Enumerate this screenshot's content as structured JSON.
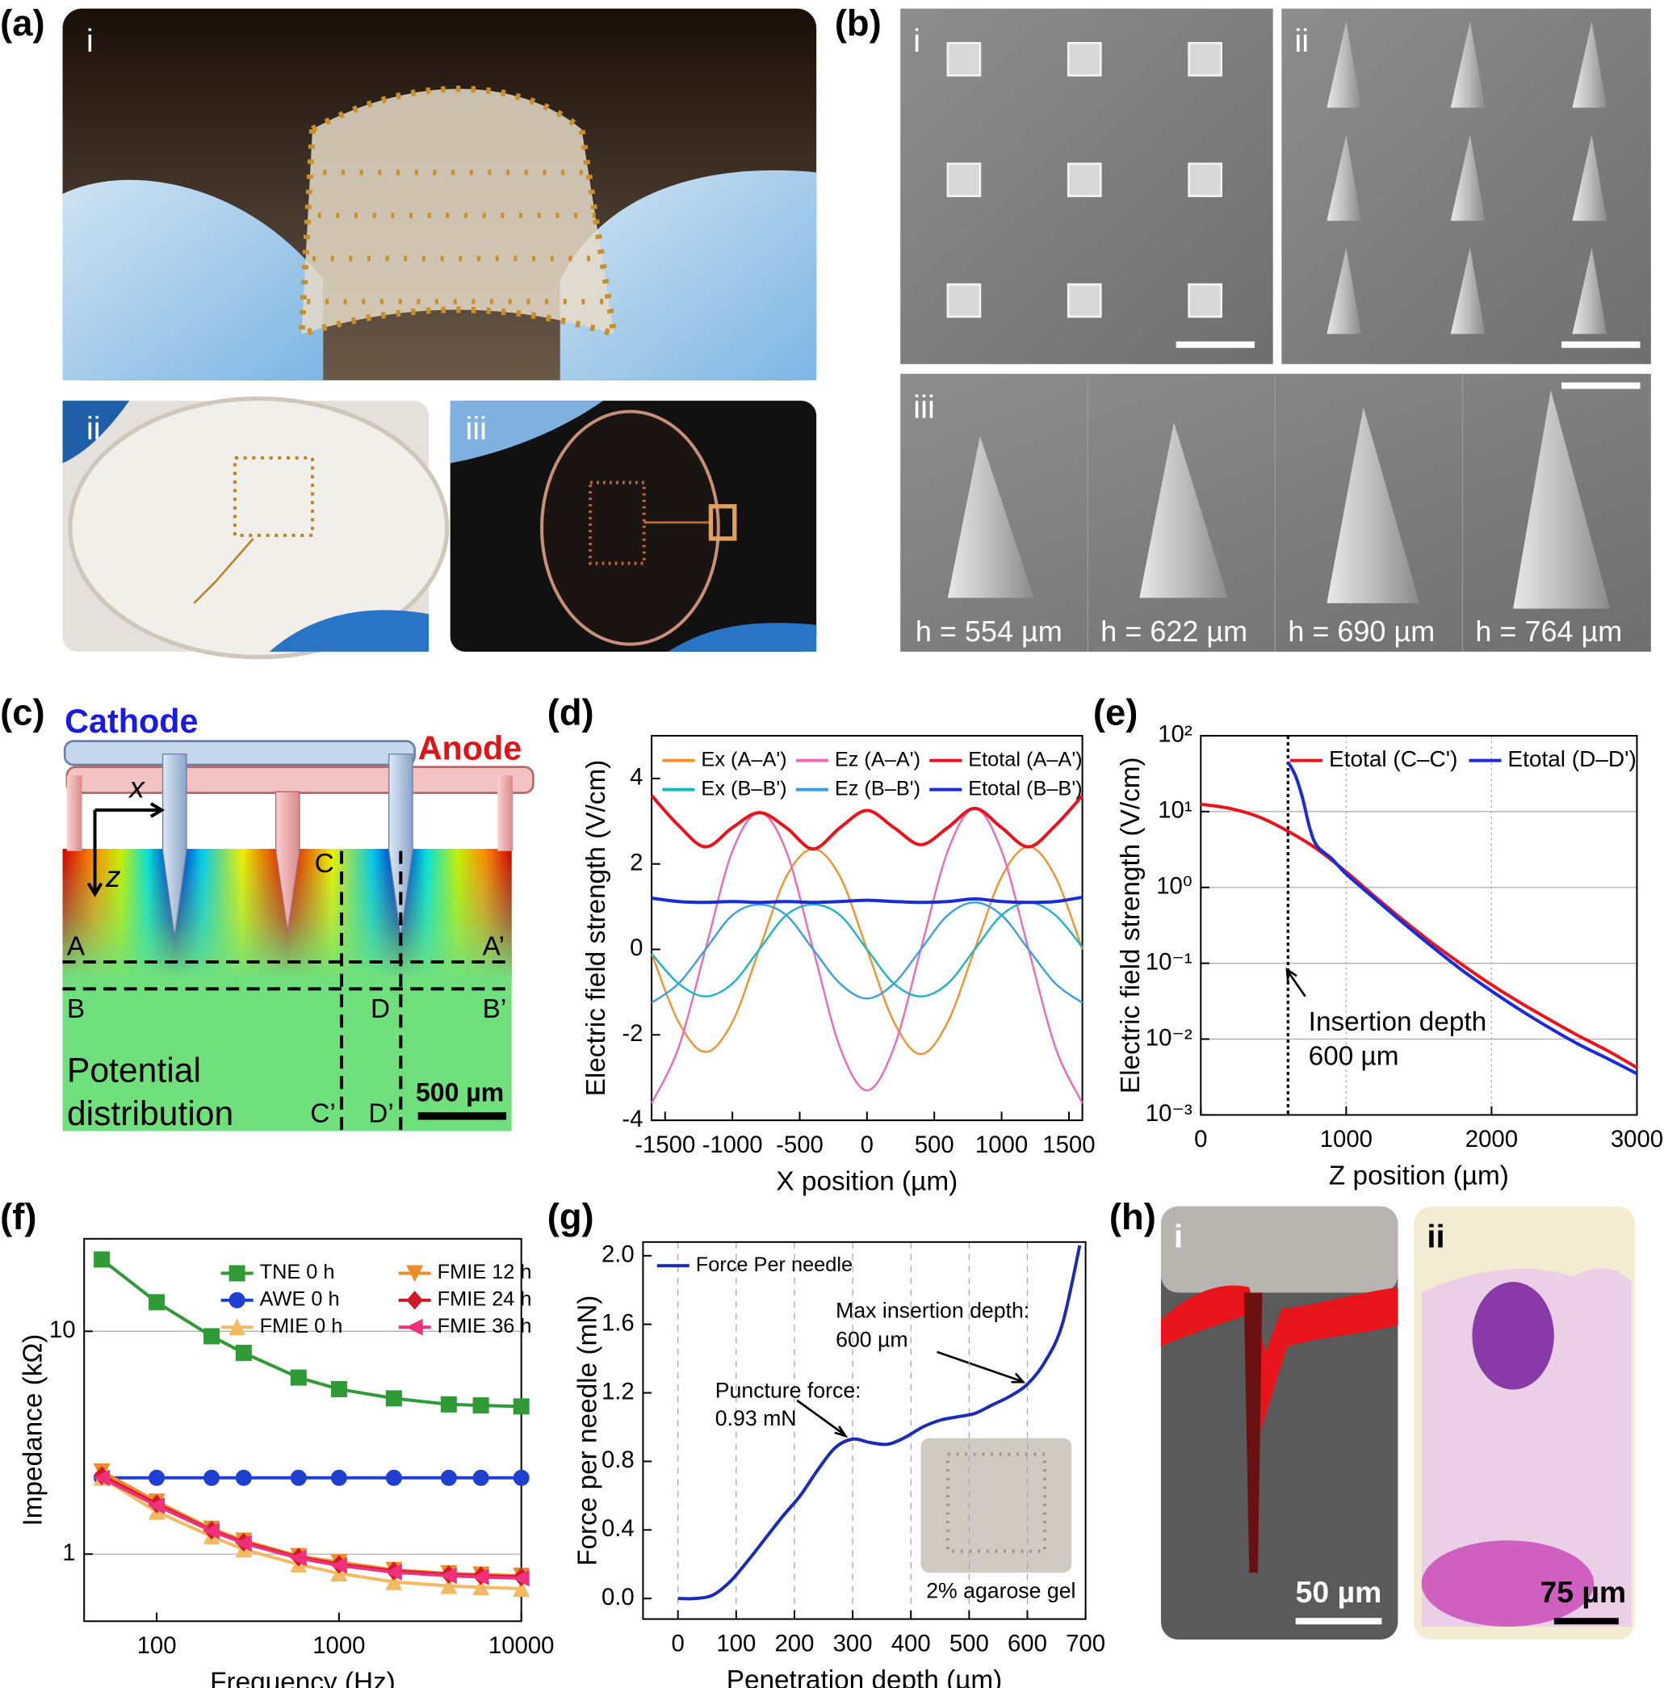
{
  "photos": {
    "a": {
      "label": "(a)",
      "sub": [
        "i",
        "ii",
        "iii"
      ]
    },
    "b": {
      "label": "(b)",
      "sub": [
        "i",
        "ii",
        "iii"
      ],
      "heights": [
        "h = 554 µm",
        "h = 622 µm",
        "h = 690 µm",
        "h = 764 µm"
      ]
    },
    "h": {
      "label": "(h)",
      "sub": [
        "i",
        "ii"
      ],
      "scale_bars": [
        "50 µm",
        "75 µm"
      ]
    }
  },
  "diagram": {
    "label": "(c)",
    "cathode": "Cathode",
    "anode": "Anode",
    "axes": [
      "x",
      "z"
    ],
    "points": [
      "A",
      "A’",
      "B",
      "B’",
      "C",
      "C’",
      "D",
      "D’"
    ],
    "caption": [
      "Potential",
      "distribution"
    ],
    "scale_bar": "500 µm"
  },
  "chart_data": [
    {
      "type": "line",
      "label": "(d)",
      "x_label": "X position (µm)",
      "y_label": "Electric field strength (V/cm)",
      "smooth": true,
      "legend": "upper center",
      "x": [
        -1600,
        -1400,
        -1200,
        -1000,
        -800,
        -600,
        -400,
        -200,
        0,
        200,
        400,
        600,
        800,
        1000,
        1200,
        1400,
        1600
      ],
      "xlim": [
        -1600,
        1600
      ],
      "xticks": [
        -1500,
        -1000,
        -500,
        0,
        500,
        1000,
        1500
      ],
      "ylim": [
        -4,
        5
      ],
      "yticks": [
        -4,
        -2,
        0,
        2,
        4
      ],
      "series": [
        {
          "name": "Ex (A–A')",
          "color": "#f0922e",
          "values": [
            -0.1,
            -1.7,
            -2.4,
            -1.7,
            0,
            1.7,
            2.35,
            1.7,
            0,
            -1.7,
            -2.45,
            -1.7,
            0,
            1.7,
            2.4,
            1.7,
            0
          ]
        },
        {
          "name": "Ez (A–A')",
          "color": "#e96bb8",
          "values": [
            -3.6,
            -2.3,
            0,
            2.3,
            3.2,
            2.3,
            0,
            -2.3,
            -3.3,
            -2.3,
            0,
            2.3,
            3.3,
            2.3,
            0,
            -2.3,
            -3.6
          ]
        },
        {
          "name": "Etotal (A–A')",
          "color": "#e8141c",
          "values": [
            3.6,
            2.9,
            2.4,
            2.85,
            3.2,
            2.85,
            2.35,
            2.85,
            3.25,
            2.85,
            2.45,
            2.85,
            3.3,
            2.85,
            2.4,
            2.9,
            3.6
          ]
        },
        {
          "name": "Ex (B–B')",
          "color": "#1bb5c4",
          "values": [
            -0.1,
            -0.8,
            -1.1,
            -0.8,
            0,
            0.8,
            1.05,
            0.8,
            0,
            -0.8,
            -1.1,
            -0.8,
            0,
            0.8,
            1.1,
            0.8,
            0.05
          ]
        },
        {
          "name": "Ez (B–B')",
          "color": "#3a9fe0",
          "values": [
            -1.25,
            -0.8,
            0,
            0.8,
            1.05,
            0.8,
            0,
            -0.8,
            -1.15,
            -0.8,
            0,
            0.8,
            1.1,
            0.8,
            0,
            -0.8,
            -1.25
          ]
        },
        {
          "name": "Etotal (B–B')",
          "color": "#1a2bd8",
          "values": [
            1.2,
            1.12,
            1.1,
            1.12,
            1.1,
            1.12,
            1.1,
            1.12,
            1.15,
            1.12,
            1.1,
            1.12,
            1.18,
            1.12,
            1.1,
            1.12,
            1.22
          ]
        }
      ]
    },
    {
      "type": "line",
      "label": "(e)",
      "x_label": "Z position (µm)",
      "y_label": "Electric field strength (V/cm)",
      "smooth": true,
      "log_y": true,
      "grid": "both",
      "legend": "upper right",
      "xlim": [
        0,
        3000
      ],
      "xticks": [
        0,
        1000,
        2000,
        3000
      ],
      "ylim": [
        0.001,
        100
      ],
      "yticks": [
        {
          "value": 0.001,
          "label": "10⁻³"
        },
        {
          "value": 0.01,
          "label": "10⁻²"
        },
        {
          "value": 0.1,
          "label": "10⁻¹"
        },
        {
          "value": 1,
          "label": "10⁰"
        },
        {
          "value": 10,
          "label": "10¹"
        },
        {
          "value": 100,
          "label": "10²"
        }
      ],
      "vline": 600,
      "annotations": [
        "Insertion depth",
        "600 µm"
      ],
      "series": [
        {
          "name": "Etotal (C–C')",
          "color": "#e8141c",
          "x": [
            0,
            200,
            400,
            600,
            800,
            1000,
            1200,
            1400,
            1600,
            1800,
            2000,
            2200,
            2400,
            2600,
            2800,
            3000
          ],
          "values": [
            12.5,
            11,
            8.5,
            5.5,
            3.2,
            1.6,
            0.75,
            0.36,
            0.18,
            0.095,
            0.052,
            0.03,
            0.018,
            0.011,
            0.007,
            0.0042
          ]
        },
        {
          "name": "Etotal (D–D')",
          "color": "#1a2bd8",
          "x": [
            600,
            650,
            700,
            750,
            800,
            900,
            1000,
            1200,
            1400,
            1600,
            1800,
            2000,
            2200,
            2400,
            2600,
            2800,
            3000
          ],
          "values": [
            45,
            30,
            15,
            6,
            3.5,
            2.4,
            1.5,
            0.7,
            0.33,
            0.16,
            0.08,
            0.043,
            0.024,
            0.014,
            0.0085,
            0.0055,
            0.0035
          ]
        }
      ]
    },
    {
      "type": "line",
      "label": "(f)",
      "x_label": "Frequency (Hz)",
      "y_label": "Impedance (kΩ)",
      "log_x": true,
      "log_y": true,
      "grid": "y",
      "legend": "upper right",
      "x": [
        50,
        100,
        200,
        300,
        600,
        1000,
        2000,
        4000,
        6000,
        10000
      ],
      "xlim": [
        40,
        10000
      ],
      "xticks": [
        100,
        1000,
        10000
      ],
      "ylim": [
        0.5,
        26
      ],
      "yticks": [
        1,
        10
      ],
      "series": [
        {
          "name": "TNE 0 h",
          "color": "#2f9a36",
          "marker": "square",
          "values": [
            21,
            13.5,
            9.5,
            8,
            6.2,
            5.5,
            5.0,
            4.7,
            4.65,
            4.6
          ]
        },
        {
          "name": "AWE 0 h",
          "color": "#1f3fd0",
          "marker": "circle",
          "values": [
            2.2,
            2.2,
            2.2,
            2.2,
            2.2,
            2.2,
            2.2,
            2.2,
            2.2,
            2.2
          ]
        },
        {
          "name": "FMIE 0 h",
          "color": "#f5b961",
          "marker": "triangle-up",
          "values": [
            2.2,
            1.55,
            1.2,
            1.05,
            0.9,
            0.82,
            0.75,
            0.72,
            0.71,
            0.7
          ]
        },
        {
          "name": "FMIE 12 h",
          "color": "#f08a2a",
          "marker": "triangle-down",
          "values": [
            2.35,
            1.72,
            1.3,
            1.15,
            0.98,
            0.92,
            0.85,
            0.82,
            0.81,
            0.8
          ]
        },
        {
          "name": "FMIE 24 h",
          "color": "#d01a2a",
          "marker": "diamond",
          "values": [
            2.25,
            1.68,
            1.28,
            1.13,
            0.97,
            0.9,
            0.84,
            0.81,
            0.8,
            0.79
          ]
        },
        {
          "name": "FMIE 36 h",
          "color": "#f0307a",
          "marker": "triangle-left",
          "values": [
            2.2,
            1.65,
            1.27,
            1.12,
            0.96,
            0.89,
            0.83,
            0.8,
            0.79,
            0.78
          ]
        }
      ]
    },
    {
      "type": "line",
      "label": "(g)",
      "x_label": "Penetration depth (µm)",
      "y_label": "Force per needle (mN)",
      "smooth": true,
      "grid": "x",
      "legend": "upper left",
      "x": [
        0,
        30,
        60,
        90,
        120,
        150,
        180,
        210,
        240,
        270,
        300,
        330,
        360,
        390,
        420,
        450,
        480,
        510,
        540,
        570,
        600,
        630,
        660,
        690
      ],
      "xlim": [
        -60,
        700
      ],
      "xticks": [
        0,
        100,
        200,
        300,
        400,
        500,
        600,
        700
      ],
      "ylim": [
        -0.12,
        2.08
      ],
      "yticks": [
        {
          "value": 0,
          "label": "0.0"
        },
        0.4,
        0.8,
        1.2,
        1.6,
        {
          "value": 2,
          "label": "2.0"
        }
      ],
      "annotations": [
        "Puncture force:",
        "0.93 mN",
        "Max insertion depth:",
        "600 µm",
        "2% agarose gel"
      ],
      "series": [
        {
          "name": "Force Per needle",
          "color": "#1a2bb8",
          "values": [
            0,
            0,
            0.02,
            0.1,
            0.22,
            0.35,
            0.48,
            0.6,
            0.75,
            0.88,
            0.93,
            0.91,
            0.9,
            0.94,
            1.0,
            1.04,
            1.06,
            1.08,
            1.13,
            1.18,
            1.25,
            1.38,
            1.6,
            2.06
          ]
        }
      ]
    }
  ]
}
